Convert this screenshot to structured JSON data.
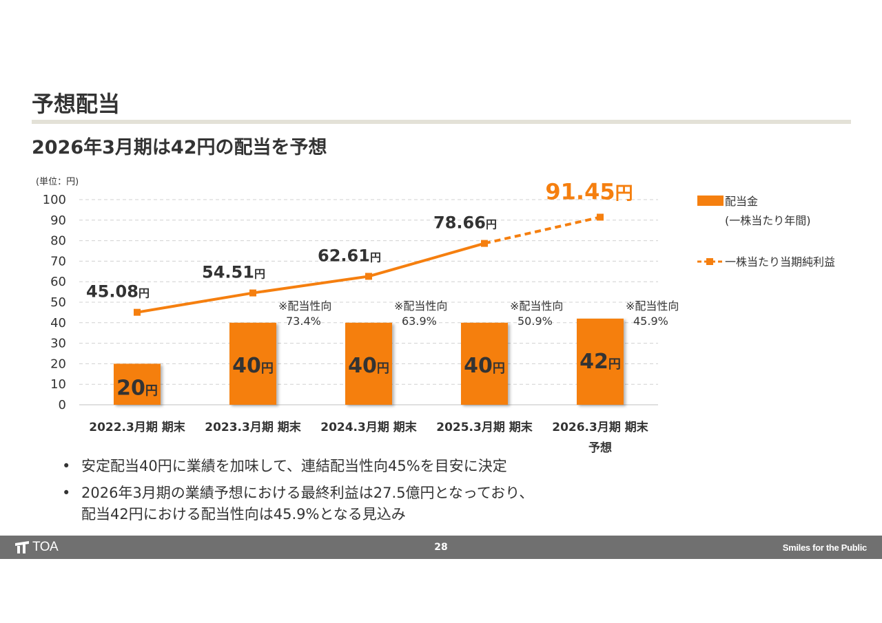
{
  "slide": {
    "title": "予想配当",
    "subtitle": "2026年3月期は42円の配当を予想",
    "page_number": "28",
    "tagline": "Smiles for the Public",
    "logo_text": "TOA",
    "bullets": [
      {
        "lines": [
          "安定配当40円に業績を加味して、連結配当性向45%を目安に決定"
        ]
      },
      {
        "lines": [
          "2026年3月期の業績予想における最終利益は27.5億円となっており、",
          "配当42円における配当性向は45.9%となる見込み"
        ]
      }
    ],
    "bullet_marker": "•"
  },
  "chart_data": {
    "type": "bar",
    "unit_note": "(単位：円)",
    "categories": [
      "2022.3月期 期末",
      "2023.3月期 期末",
      "2024.3月期 期末",
      "2025.3月期 期末",
      "2026.3月期 期末"
    ],
    "category_sublabels": [
      "",
      "",
      "",
      "",
      "予想"
    ],
    "ylim": [
      0,
      100
    ],
    "yticks": [
      0,
      10,
      20,
      30,
      40,
      50,
      60,
      70,
      80,
      90,
      100
    ],
    "grid": true,
    "series": [
      {
        "name": "配当金",
        "name_sub": "(一株当たり年間)",
        "type": "bar",
        "color": "#f57f0f",
        "values": [
          20,
          40,
          40,
          40,
          42
        ],
        "labels": [
          "20",
          "40",
          "40",
          "40",
          "42"
        ],
        "label_unit": "円"
      },
      {
        "name": "一株当たり当期純利益",
        "type": "line",
        "color": "#f57f0f",
        "values": [
          45.08,
          54.51,
          62.61,
          78.66,
          91.45
        ],
        "labels": [
          "45.08",
          "54.51",
          "62.61",
          "78.66",
          "91.45"
        ],
        "label_unit": "円",
        "forecast_from_index": 3
      }
    ],
    "payout_ratio_label": "※配当性向",
    "payout_ratios": [
      "",
      "73.4%",
      "63.9%",
      "50.9%",
      "45.9%"
    ],
    "accent_color": "#f57f0f",
    "text_color": "#333333"
  }
}
